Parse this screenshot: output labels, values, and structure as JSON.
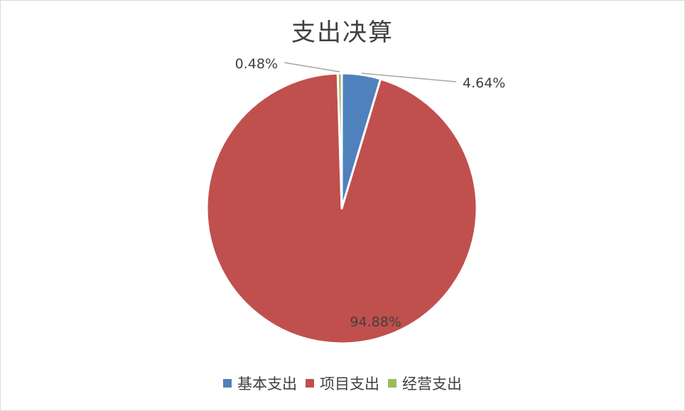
{
  "chart_data": {
    "type": "pie",
    "title": "支出决算",
    "categories": [
      "基本支出",
      "项目支出",
      "经营支出"
    ],
    "values": [
      4.64,
      94.88,
      0.48
    ],
    "labels": [
      "4.64%",
      "94.88%",
      "0.48%"
    ],
    "colors": [
      "#4f81bd",
      "#c0504d",
      "#9bbb59"
    ],
    "legend_position": "bottom"
  }
}
